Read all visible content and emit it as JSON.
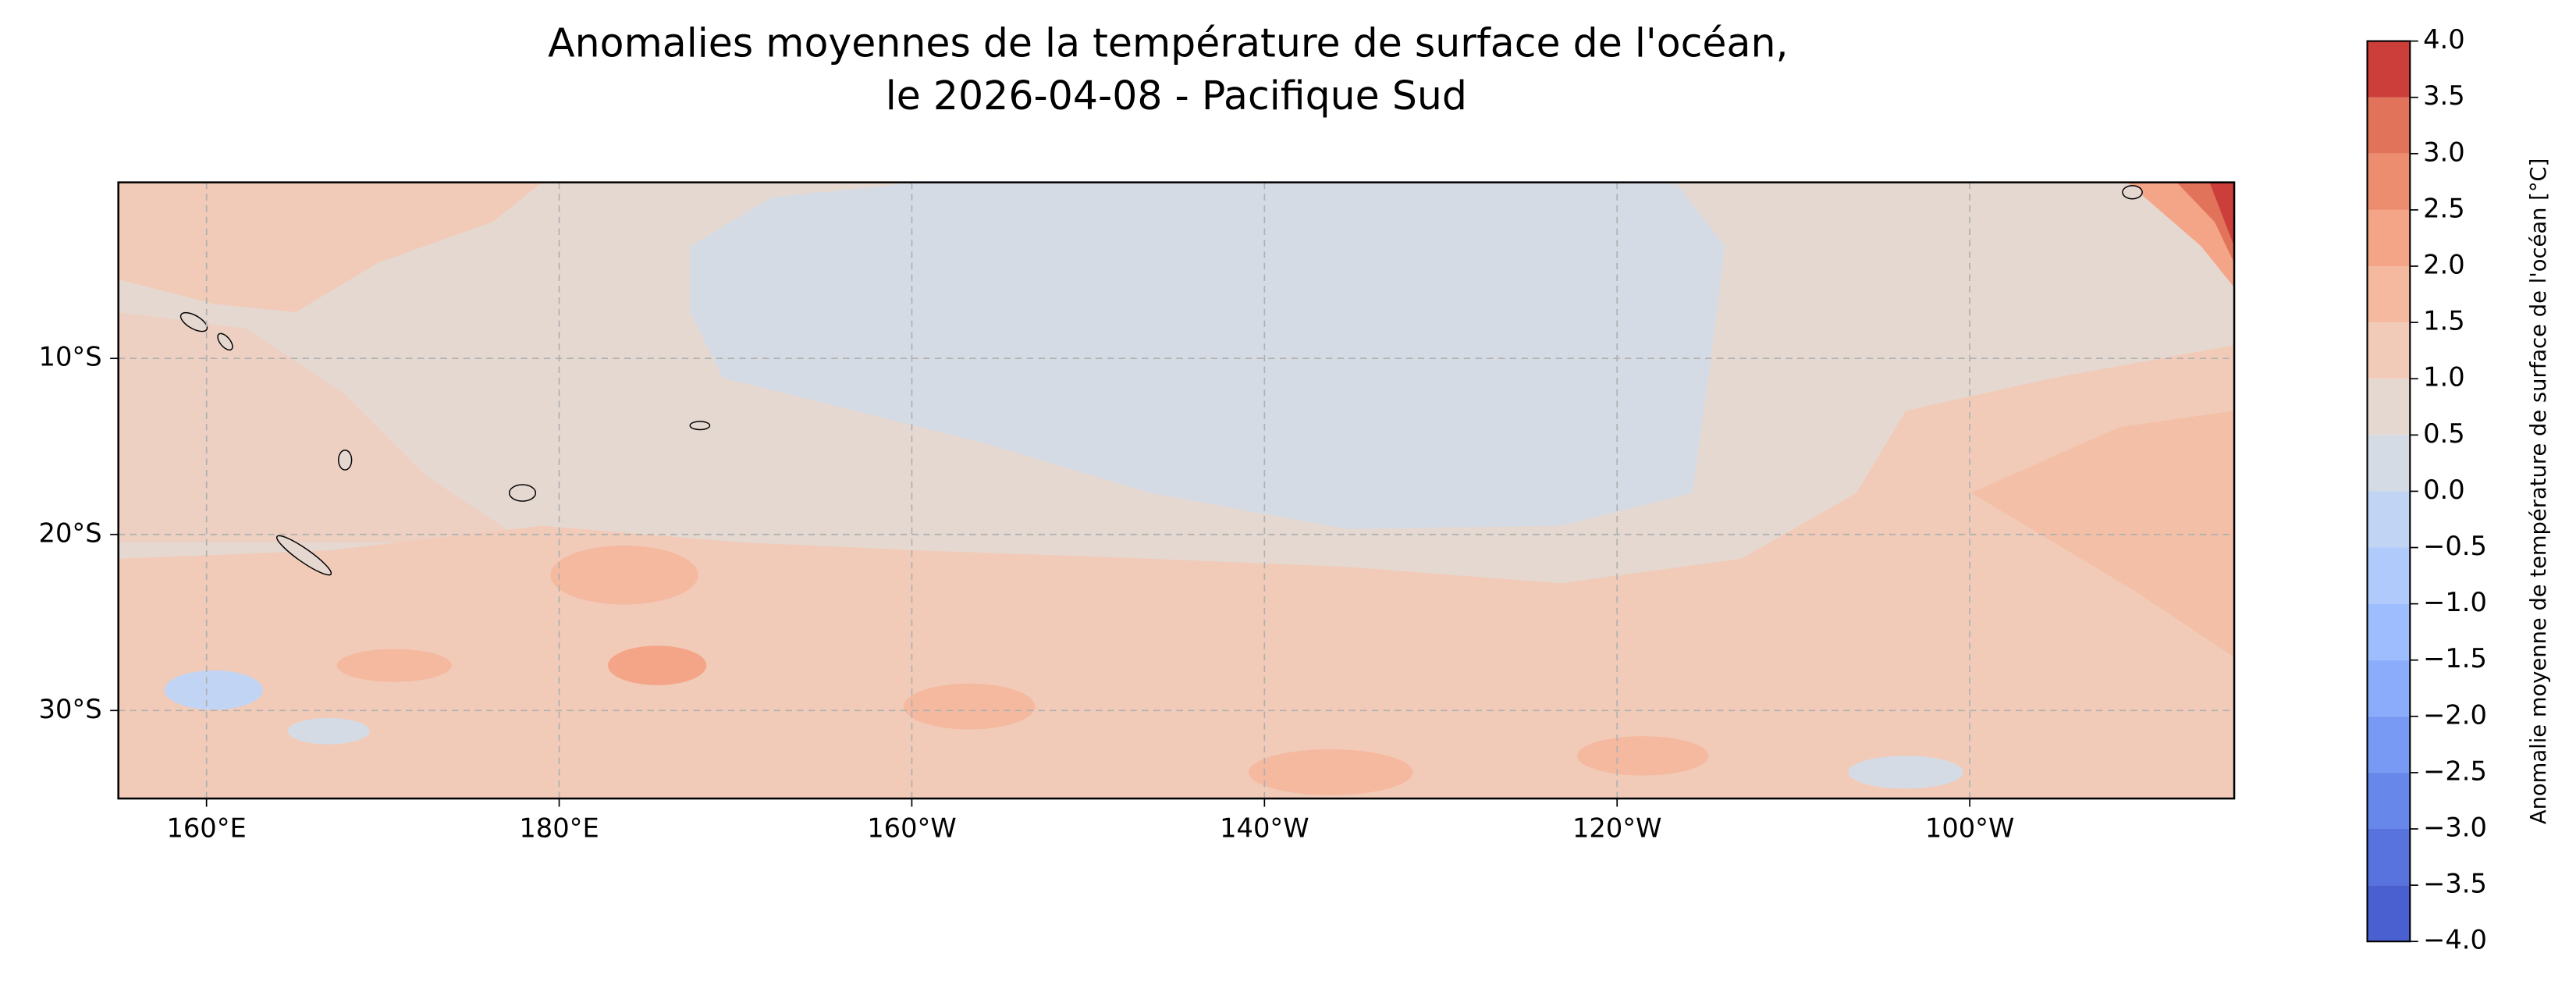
{
  "chart_data": {
    "type": "contour-map",
    "title": [
      "Anomalies moyennes de la température de surface de l'océan,",
      "le 2026-04-08 - Pacifique Sud"
    ],
    "xlim": [
      155,
      275
    ],
    "xticks": [
      {
        "value": 160,
        "label": "160°E"
      },
      {
        "value": 180,
        "label": "180°E"
      },
      {
        "value": 200,
        "label": "160°W"
      },
      {
        "value": 220,
        "label": "140°W"
      },
      {
        "value": 240,
        "label": "120°W"
      },
      {
        "value": 260,
        "label": "100°W"
      }
    ],
    "ylim": [
      -35,
      0
    ],
    "yticks": [
      {
        "value": -10,
        "label": "10°S"
      },
      {
        "value": -20,
        "label": "20°S"
      },
      {
        "value": -30,
        "label": "30°S"
      }
    ],
    "grid": true,
    "colorbar": {
      "label": "Anomalie moyenne de température de surface de l'océan [°C]",
      "levels": [
        -4,
        -3.5,
        -3,
        -2.5,
        -2,
        -1.5,
        -1,
        -0.5,
        0,
        0.5,
        1,
        1.5,
        2,
        2.5,
        3,
        3.5,
        4
      ],
      "colors": [
        "#4a5fd0",
        "#5873de",
        "#6787ea",
        "#789af4",
        "#8aacfb",
        "#9dbdfe",
        "#b0cbfb",
        "#c2d4f4",
        "#d5dbe5",
        "#e5d8d1",
        "#f1cbb8",
        "#f5b9a0",
        "#f4a587",
        "#ec8d70",
        "#e1735a",
        "#cc3e3a"
      ],
      "ticks": [
        {
          "value": 4,
          "label": "4.0"
        },
        {
          "value": 3.5,
          "label": "3.5"
        },
        {
          "value": 3,
          "label": "3.0"
        },
        {
          "value": 2.5,
          "label": "2.5"
        },
        {
          "value": 2,
          "label": "2.0"
        },
        {
          "value": 1.5,
          "label": "1.5"
        },
        {
          "value": 1,
          "label": "1.0"
        },
        {
          "value": 0.5,
          "label": "0.5"
        },
        {
          "value": 0,
          "label": "0.0"
        },
        {
          "value": -0.5,
          "label": "−0.5"
        },
        {
          "value": -1,
          "label": "−1.0"
        },
        {
          "value": -1.5,
          "label": "−1.5"
        },
        {
          "value": -2,
          "label": "−2.0"
        },
        {
          "value": -2.5,
          "label": "−2.5"
        },
        {
          "value": -3,
          "label": "−3.0"
        },
        {
          "value": -3.5,
          "label": "−3.5"
        },
        {
          "value": -4,
          "label": "−4.0"
        }
      ]
    }
  }
}
